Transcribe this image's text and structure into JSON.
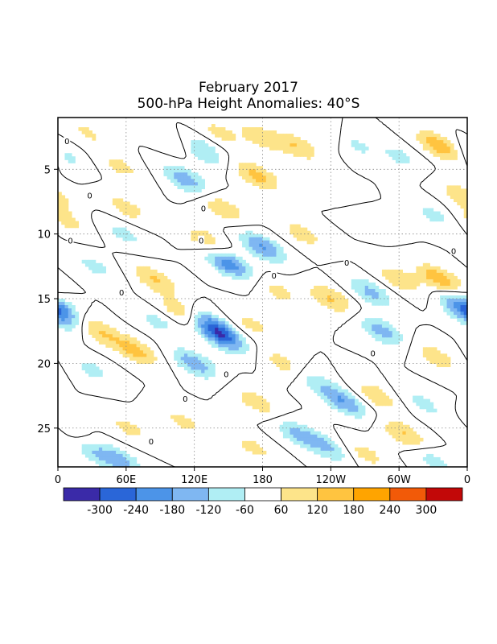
{
  "chart_data": {
    "type": "heatmap",
    "title": "February 2017",
    "subtitle": "500-hPa Height Anomalies: 40°S",
    "xlabel": "",
    "ylabel": "",
    "x_tick_labels": [
      "0",
      "60E",
      "120E",
      "180",
      "120W",
      "60W",
      "0"
    ],
    "x_tick_lon": [
      0,
      60,
      120,
      180,
      240,
      300,
      360
    ],
    "xlim": [
      0,
      360
    ],
    "y_tick_labels": [
      "5",
      "10",
      "15",
      "20",
      "25"
    ],
    "y_tick_values": [
      5,
      10,
      15,
      20,
      25
    ],
    "ylim": [
      1,
      28
    ],
    "y_inverted": true,
    "grid": true,
    "contour_zero_label": "0",
    "colorbar": {
      "labels": [
        "-300",
        "-240",
        "-180",
        "-120",
        "-60",
        "60",
        "120",
        "180",
        "240",
        "300"
      ],
      "colors": [
        "#3a2aa8",
        "#2a66d8",
        "#4c94e8",
        "#7fb7f2",
        "#b0eef4",
        "#ffffff",
        "#fde48a",
        "#ffc440",
        "#ffa400",
        "#f25a08",
        "#c20808"
      ],
      "placement": "bottom"
    },
    "anomaly_features": [
      {
        "lon": 6,
        "day": 4.0,
        "value": -80
      },
      {
        "lon": 26,
        "day": 2.2,
        "value": 70
      },
      {
        "lon": 55,
        "day": 4.8,
        "value": 80
      },
      {
        "lon": 106,
        "day": 3.0,
        "value": 80
      },
      {
        "lon": 143,
        "day": 2.2,
        "value": 80
      },
      {
        "lon": 178,
        "day": 2.5,
        "value": 100
      },
      {
        "lon": 210,
        "day": 3.2,
        "value": 120
      },
      {
        "lon": 240,
        "day": 2.3,
        "value": 90
      },
      {
        "lon": 258,
        "day": 3.0,
        "value": -100
      },
      {
        "lon": 300,
        "day": 4.0,
        "value": -80
      },
      {
        "lon": 336,
        "day": 3.2,
        "value": 180
      },
      {
        "lon": 175,
        "day": 5.5,
        "value": 150
      },
      {
        "lon": 125,
        "day": 3.5,
        "value": -150
      },
      {
        "lon": 112,
        "day": 5.8,
        "value": -170
      },
      {
        "lon": 145,
        "day": 8.0,
        "value": 110
      },
      {
        "lon": 8,
        "day": 9.0,
        "value": 80
      },
      {
        "lon": 60,
        "day": 8.0,
        "value": 90
      },
      {
        "lon": 250,
        "day": 7.0,
        "value": 70
      },
      {
        "lon": 270,
        "day": 8.5,
        "value": -70
      },
      {
        "lon": 330,
        "day": 8.5,
        "value": -80
      },
      {
        "lon": 355,
        "day": 7.0,
        "value": 100
      },
      {
        "lon": 58,
        "day": 10.0,
        "value": -80
      },
      {
        "lon": 180,
        "day": 11.0,
        "value": -190
      },
      {
        "lon": 150,
        "day": 12.3,
        "value": -230
      },
      {
        "lon": 130,
        "day": 10.5,
        "value": 110
      },
      {
        "lon": 215,
        "day": 10.0,
        "value": 90
      },
      {
        "lon": 32,
        "day": 12.5,
        "value": -80
      },
      {
        "lon": 85,
        "day": 13.5,
        "value": 130
      },
      {
        "lon": 195,
        "day": 14.5,
        "value": 80
      },
      {
        "lon": 240,
        "day": 15.0,
        "value": 130
      },
      {
        "lon": 300,
        "day": 13.5,
        "value": 110
      },
      {
        "lon": 275,
        "day": 14.5,
        "value": -140
      },
      {
        "lon": 336,
        "day": 13.5,
        "value": 180
      },
      {
        "lon": 285,
        "day": 17.5,
        "value": -150
      },
      {
        "lon": 356,
        "day": 15.5,
        "value": -200
      },
      {
        "lon": 4,
        "day": 16.5,
        "value": -130
      },
      {
        "lon": 88,
        "day": 16.8,
        "value": -80
      },
      {
        "lon": 35,
        "day": 17.5,
        "value": 130
      },
      {
        "lon": 68,
        "day": 19.0,
        "value": 150
      },
      {
        "lon": 108,
        "day": 16.0,
        "value": 110
      },
      {
        "lon": 170,
        "day": 17.0,
        "value": 80
      },
      {
        "lon": 135,
        "day": 17.0,
        "value": -180
      },
      {
        "lon": 145,
        "day": 18.0,
        "value": -220
      },
      {
        "lon": 120,
        "day": 20.0,
        "value": -170
      },
      {
        "lon": 30,
        "day": 20.5,
        "value": -80
      },
      {
        "lon": 198,
        "day": 20.0,
        "value": 90
      },
      {
        "lon": 228,
        "day": 21.5,
        "value": -90
      },
      {
        "lon": 252,
        "day": 23.0,
        "value": -180
      },
      {
        "lon": 332,
        "day": 19.5,
        "value": 100
      },
      {
        "lon": 280,
        "day": 22.5,
        "value": 110
      },
      {
        "lon": 320,
        "day": 23.0,
        "value": -80
      },
      {
        "lon": 175,
        "day": 23.0,
        "value": 100
      },
      {
        "lon": 5,
        "day": 25.0,
        "value": 80
      },
      {
        "lon": 62,
        "day": 25.0,
        "value": 80
      },
      {
        "lon": 110,
        "day": 24.5,
        "value": 80
      },
      {
        "lon": 34,
        "day": 27.0,
        "value": -100
      },
      {
        "lon": 55,
        "day": 27.5,
        "value": -140
      },
      {
        "lon": 172,
        "day": 26.5,
        "value": 80
      },
      {
        "lon": 212,
        "day": 25.5,
        "value": -140
      },
      {
        "lon": 238,
        "day": 26.5,
        "value": -120
      },
      {
        "lon": 270,
        "day": 27.0,
        "value": 90
      },
      {
        "lon": 305,
        "day": 25.5,
        "value": 130
      },
      {
        "lon": 330,
        "day": 27.5,
        "value": -90
      },
      {
        "lon": 355,
        "day": 25.0,
        "value": -80
      }
    ]
  }
}
